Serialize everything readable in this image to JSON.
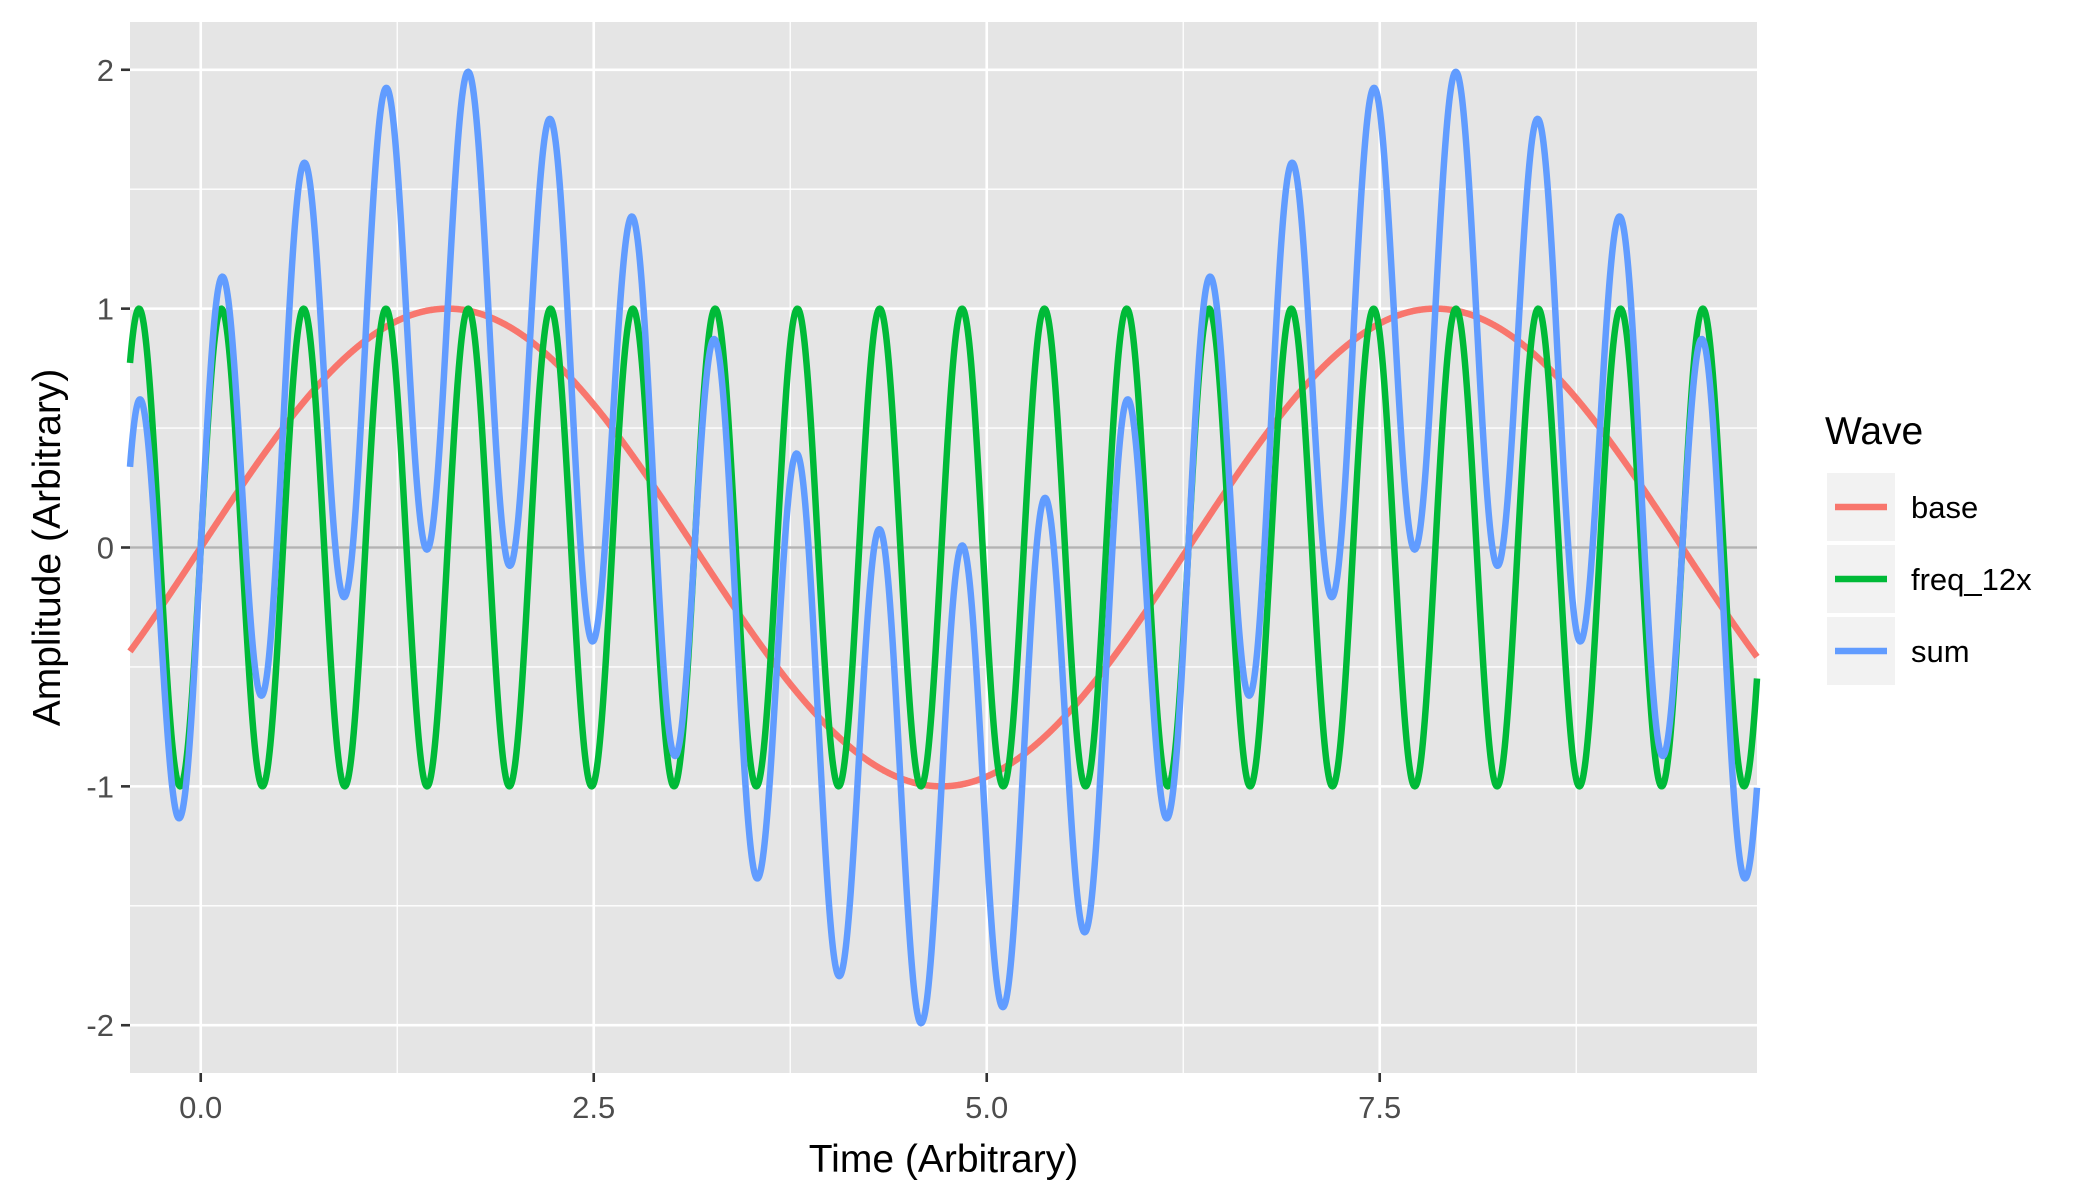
{
  "chart_data": {
    "type": "line",
    "xlabel": "Time (Arbitrary)",
    "ylabel": "Amplitude (Arbitrary)",
    "xlim": [
      -0.45,
      9.9
    ],
    "ylim": [
      -2.2,
      2.2
    ],
    "x_ticks": [
      0.0,
      2.5,
      5.0,
      7.5
    ],
    "x_tick_labels": [
      "0.0",
      "2.5",
      "5.0",
      "7.5"
    ],
    "y_ticks": [
      -2,
      -1,
      0,
      1,
      2
    ],
    "y_tick_labels": [
      "-2",
      "-1",
      "0",
      "1",
      "2"
    ],
    "grid": true,
    "panel_background": "#e5e5e5",
    "grid_color": "#ffffff",
    "zero_line_color": "#b3b3b3",
    "legend": {
      "title": "Wave",
      "position": "right",
      "entries": [
        "base",
        "freq_12x",
        "sum"
      ]
    },
    "series": [
      {
        "name": "base",
        "color": "#f8766d",
        "function": "sin(t)",
        "frequency_multiplier": 1
      },
      {
        "name": "freq_12x",
        "color": "#00ba38",
        "function": "sin(12 t)",
        "frequency_multiplier": 12
      },
      {
        "name": "sum",
        "color": "#619cff",
        "function": "sin(t) + sin(12 t)"
      }
    ],
    "x_range": [
      -0.45,
      9.9
    ],
    "sample_points": 2400
  }
}
